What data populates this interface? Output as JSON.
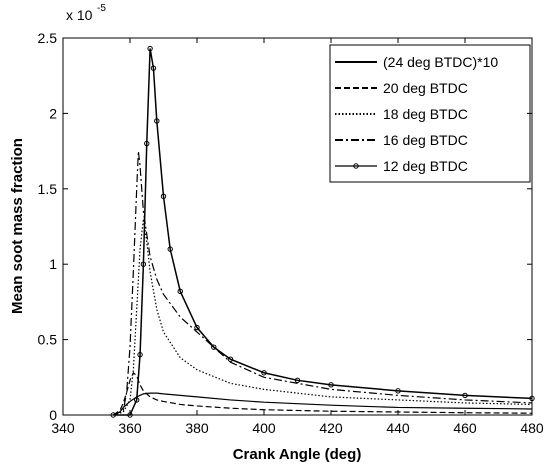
{
  "chart_data": {
    "type": "line",
    "xlabel": "Crank Angle (deg)",
    "ylabel": "Mean soot mass fraction",
    "y_multiplier": {
      "base": "x 10",
      "exponent": "-5"
    },
    "xlim": [
      340,
      480
    ],
    "xticks": [
      340,
      360,
      380,
      400,
      420,
      440,
      460,
      480
    ],
    "ylim": [
      0,
      2.5
    ],
    "yticks": [
      0,
      0.5,
      1,
      1.5,
      2,
      2.5
    ],
    "grid": false,
    "legend_position": "upper right",
    "series": [
      {
        "name": "(24 deg BTDC)*10",
        "color": "#000000",
        "style": "solid",
        "x": [
          355,
          357,
          358,
          360,
          362,
          364,
          366,
          368,
          370,
          375,
          380,
          390,
          400,
          420,
          440,
          460,
          480
        ],
        "values": [
          0,
          0.02,
          0.05,
          0.09,
          0.12,
          0.14,
          0.145,
          0.145,
          0.14,
          0.13,
          0.12,
          0.1,
          0.085,
          0.065,
          0.05,
          0.045,
          0.04
        ]
      },
      {
        "name": "20 deg BTDC",
        "color": "#000000",
        "style": "dashed",
        "x": [
          355,
          357,
          358,
          359,
          360,
          361,
          362,
          363,
          364,
          366,
          368,
          370,
          375,
          380,
          390,
          400,
          420,
          440,
          460,
          480
        ],
        "values": [
          0,
          0.03,
          0.08,
          0.15,
          0.23,
          0.28,
          0.26,
          0.2,
          0.16,
          0.12,
          0.1,
          0.09,
          0.07,
          0.06,
          0.045,
          0.035,
          0.025,
          0.02,
          0.015,
          0.012
        ]
      },
      {
        "name": "18 deg BTDC",
        "color": "#000000",
        "style": "dotted",
        "x": [
          355,
          358,
          360,
          361,
          362,
          363,
          364,
          365,
          366,
          368,
          370,
          375,
          380,
          390,
          400,
          420,
          440,
          460,
          480
        ],
        "values": [
          0,
          0.02,
          0.1,
          0.3,
          0.7,
          1.1,
          1.3,
          1.15,
          0.95,
          0.7,
          0.55,
          0.38,
          0.3,
          0.21,
          0.17,
          0.12,
          0.1,
          0.08,
          0.07
        ]
      },
      {
        "name": "16 deg BTDC",
        "color": "#000000",
        "style": "dashdot",
        "x": [
          355,
          358,
          359,
          360,
          361,
          362,
          362.5,
          363,
          364,
          366,
          368,
          370,
          375,
          380,
          390,
          400,
          420,
          440,
          460,
          480
        ],
        "values": [
          0,
          0.03,
          0.15,
          0.45,
          0.95,
          1.5,
          1.75,
          1.65,
          1.35,
          1.05,
          0.9,
          0.8,
          0.65,
          0.55,
          0.35,
          0.25,
          0.17,
          0.13,
          0.1,
          0.08
        ]
      },
      {
        "name": "12 deg BTDC",
        "color": "#000000",
        "style": "solid",
        "marker": "circle",
        "x": [
          355,
          360,
          362,
          363,
          364,
          365,
          366,
          367,
          368,
          370,
          372,
          375,
          380,
          385,
          390,
          400,
          410,
          420,
          440,
          460,
          480
        ],
        "values": [
          0,
          0,
          0.1,
          0.4,
          1.0,
          1.8,
          2.43,
          2.3,
          1.95,
          1.45,
          1.1,
          0.82,
          0.58,
          0.45,
          0.37,
          0.28,
          0.23,
          0.2,
          0.16,
          0.13,
          0.11
        ]
      }
    ]
  }
}
